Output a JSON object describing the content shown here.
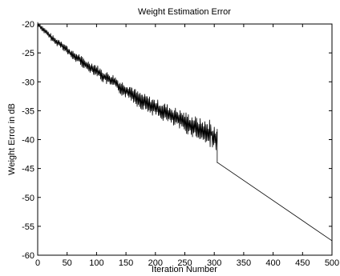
{
  "chart_data": {
    "type": "line",
    "title": "Weight Estimation Error",
    "xlabel": "Iteration Number",
    "ylabel": "Weight Error in dB",
    "xlim": [
      0,
      500
    ],
    "ylim": [
      -60,
      -20
    ],
    "xticks": [
      0,
      50,
      100,
      150,
      200,
      250,
      300,
      350,
      400,
      450,
      500
    ],
    "yticks": [
      -20,
      -25,
      -30,
      -35,
      -40,
      -45,
      -50,
      -55,
      -60
    ],
    "grid": false,
    "line_color": "#000000",
    "series": [
      {
        "description_points": "noisy decline from about -20 dB to about -40 dB over iterations 0-305, vertical drop to about -44 dB at iteration 305, then linear decline to about -57.5 dB at iteration 500",
        "x": [
          0,
          5,
          10,
          20,
          30,
          40,
          50,
          60,
          70,
          80,
          90,
          100,
          110,
          120,
          130,
          140,
          150,
          160,
          170,
          180,
          190,
          200,
          210,
          220,
          230,
          240,
          250,
          260,
          270,
          280,
          290,
          300,
          305,
          305,
          306,
          350,
          400,
          450,
          500
        ],
        "y": [
          -20,
          -20.5,
          -21,
          -22,
          -23,
          -23.5,
          -24.5,
          -25.5,
          -26,
          -27,
          -27.5,
          -28,
          -29,
          -29.5,
          -30,
          -31,
          -31.5,
          -32,
          -33,
          -33.5,
          -34,
          -34.5,
          -35,
          -35.5,
          -36,
          -36.5,
          -37,
          -37.5,
          -38,
          -38.5,
          -39,
          -39.5,
          -40.5,
          -44,
          -44,
          -47,
          -50.5,
          -54,
          -57.5
        ]
      }
    ]
  }
}
